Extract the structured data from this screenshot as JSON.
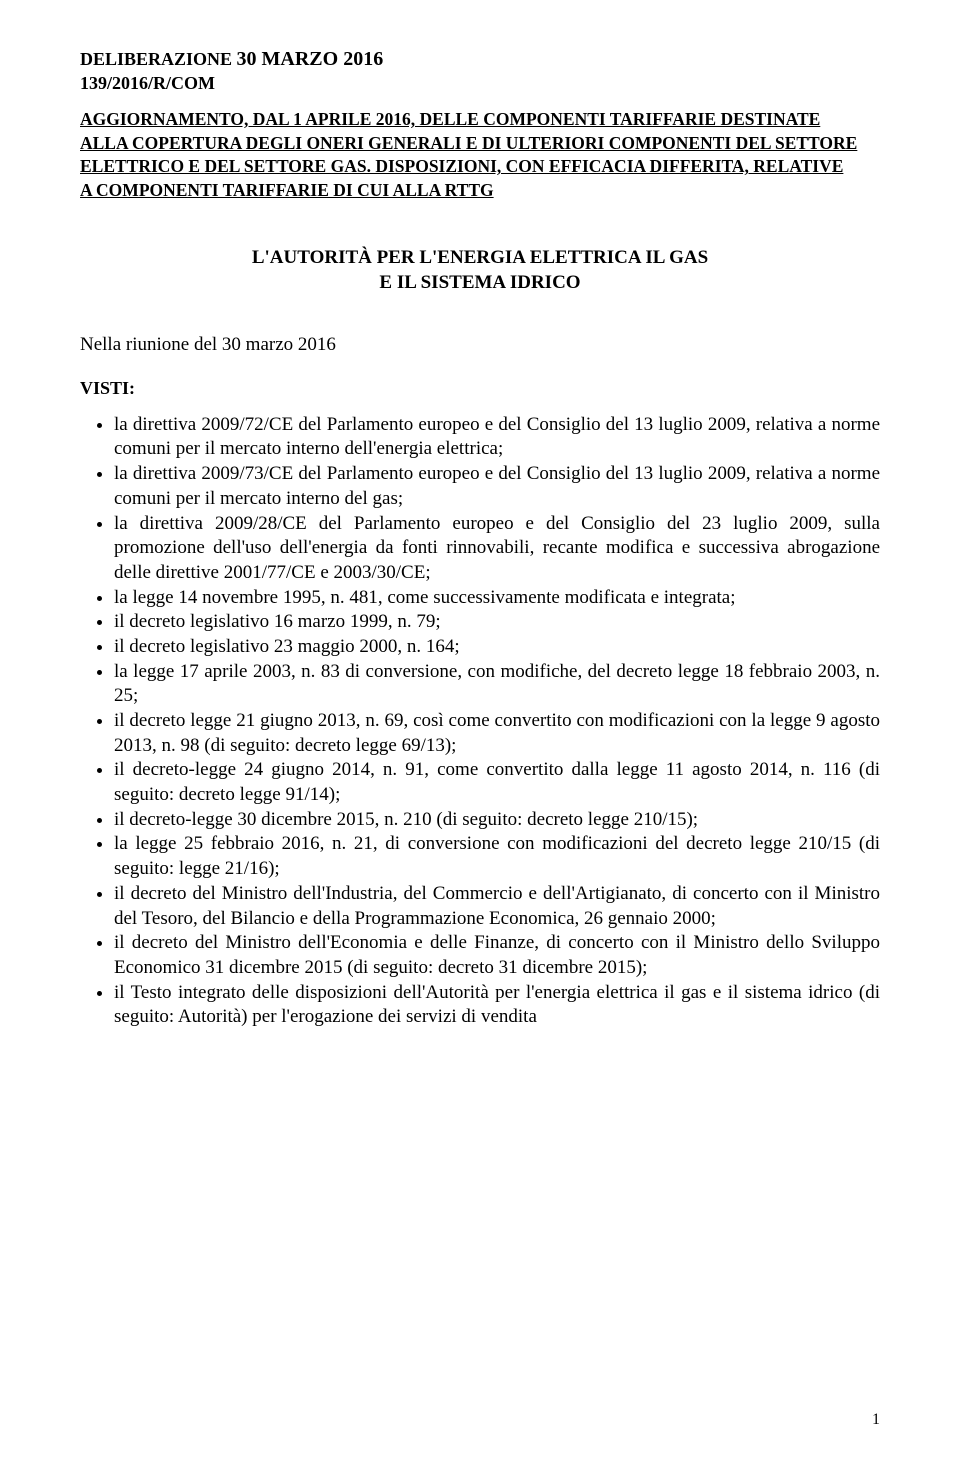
{
  "header": {
    "line1_pre": "DELIBERAZIONE ",
    "line1_date": "30 MARZO 2016",
    "line2": "139/2016/R/COM"
  },
  "title": {
    "l1": "AGGIORNAMENTO, DAL 1 APRILE 2016, DELLE COMPONENTI TARIFFARIE DESTINATE",
    "l2": "ALLA COPERTURA DEGLI ONERI GENERALI E DI ULTERIORI COMPONENTI DEL SETTORE",
    "l3": "ELETTRICO E DEL SETTORE GAS. DISPOSIZIONI, CON EFFICACIA DIFFERITA, RELATIVE",
    "l4": "A COMPONENTI TARIFFARIE DI CUI ALLA RTTG"
  },
  "authority": {
    "l1": "L'AUTORITÀ PER L'ENERGIA ELETTRICA IL GAS",
    "l2": "E IL SISTEMA IDRICO"
  },
  "meeting": "Nella riunione del 30 marzo 2016",
  "visti_label": "VISTI:",
  "visti": [
    "la direttiva 2009/72/CE del Parlamento europeo e del Consiglio del 13 luglio 2009, relativa a norme comuni per il mercato interno dell'energia elettrica;",
    "la direttiva 2009/73/CE del Parlamento europeo e del Consiglio del 13 luglio 2009, relativa a norme comuni per il mercato interno del gas;",
    "la direttiva 2009/28/CE del Parlamento europeo e del Consiglio del 23 luglio 2009, sulla promozione dell'uso dell'energia da fonti rinnovabili, recante modifica e successiva abrogazione delle direttive 2001/77/CE e 2003/30/CE;",
    "la legge 14 novembre 1995, n. 481, come successivamente modificata e integrata;",
    "il decreto legislativo 16 marzo 1999, n. 79;",
    "il decreto legislativo 23 maggio 2000, n. 164;",
    "la legge 17 aprile 2003, n. 83 di conversione, con modifiche, del decreto legge 18 febbraio 2003, n. 25;",
    "il decreto legge 21 giugno 2013, n. 69, così come convertito con modificazioni con la legge 9 agosto 2013, n. 98 (di seguito: decreto legge 69/13);",
    "il decreto-legge 24 giugno 2014, n. 91, come convertito dalla legge 11 agosto 2014, n. 116 (di seguito: decreto legge 91/14);",
    "il decreto-legge 30 dicembre 2015, n. 210 (di seguito: decreto legge 210/15);",
    "la legge 25 febbraio 2016, n. 21, di conversione con modificazioni del decreto legge 210/15 (di seguito: legge 21/16);",
    "il decreto del Ministro dell'Industria, del Commercio e dell'Artigianato, di concerto con il Ministro del Tesoro, del Bilancio e della Programmazione Economica, 26 gennaio 2000;",
    "il decreto del Ministro dell'Economia e delle Finanze, di concerto con il Ministro dello Sviluppo Economico 31 dicembre 2015 (di seguito: decreto 31 dicembre 2015);",
    "il Testo integrato delle disposizioni dell'Autorità per l'energia elettrica il gas e il sistema idrico (di seguito: Autorità) per l'erogazione dei servizi di vendita"
  ],
  "page_number": "1"
}
